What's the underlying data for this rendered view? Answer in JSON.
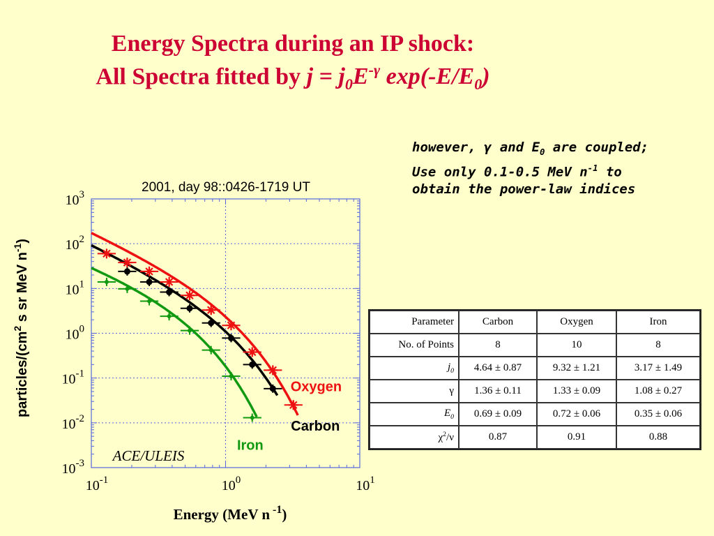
{
  "slide": {
    "title_line1": "Energy Spectra during an IP shock:",
    "title_line2_prefix": "All Spectra fitted by ",
    "title_formula": "j = j0E-γ exp(-E/E0)",
    "note_lines": [
      "however, γ and E0 are coupled;",
      "Use only 0.1-0.5 MeV n-1 to",
      "obtain the power-law indices"
    ]
  },
  "table": {
    "headers": [
      "Parameter",
      "Carbon",
      "Oxygen",
      "Iron"
    ],
    "rows": [
      {
        "label": "No. of Points",
        "values": [
          "8",
          "10",
          "8"
        ]
      },
      {
        "label": "j0",
        "values": [
          "4.64 ± 0.87",
          "9.32 ± 1.21",
          "3.17 ± 1.49"
        ]
      },
      {
        "label": "γ",
        "values": [
          "1.36 ± 0.11",
          "1.33 ± 0.09",
          "1.08 ± 0.27"
        ]
      },
      {
        "label": "E0",
        "values": [
          "0.69 ± 0.09",
          "0.72 ± 0.06",
          "0.35 ± 0.06"
        ]
      },
      {
        "label": "χ2/ν",
        "values": [
          "0.87",
          "0.91",
          "0.88"
        ]
      }
    ]
  },
  "chart_data": {
    "type": "scatter",
    "title": "2001, day 98::0426-1719 UT",
    "xlabel": "Energy (MeV n -1)",
    "ylabel": "particles/(cm2 s sr MeV n-1)",
    "xscale": "log",
    "yscale": "log",
    "xlim": [
      0.1,
      10
    ],
    "ylim": [
      0.001,
      1000
    ],
    "x_ticks": [
      "10^-1",
      "10^0",
      "10^1"
    ],
    "y_ticks": [
      "10^3",
      "10^2",
      "10^1",
      "10^0",
      "10^-1",
      "10^-2",
      "10^-3"
    ],
    "grid": true,
    "annotation": "ACE/ULEIS",
    "series": [
      {
        "name": "Oxygen",
        "color": "#ee1111",
        "marker": "star",
        "x": [
          0.13,
          0.185,
          0.27,
          0.38,
          0.54,
          0.78,
          1.1,
          1.58,
          2.25,
          3.2
        ],
        "y": [
          60,
          38,
          24,
          14,
          7,
          3.3,
          1.5,
          0.38,
          0.15,
          0.025
        ],
        "fit": {
          "j0": 9.32,
          "gamma": 1.33,
          "E0": 0.72
        }
      },
      {
        "name": "Carbon",
        "color": "#000000",
        "marker": "circle",
        "x": [
          0.185,
          0.27,
          0.38,
          0.54,
          0.78,
          1.1,
          1.58,
          2.25
        ],
        "y": [
          24,
          14,
          8.3,
          3.6,
          1.7,
          0.78,
          0.2,
          0.058
        ],
        "fit": {
          "j0": 4.64,
          "gamma": 1.36,
          "E0": 0.69
        }
      },
      {
        "name": "Iron",
        "color": "#119911",
        "marker": "diamond",
        "x": [
          0.13,
          0.185,
          0.27,
          0.38,
          0.54,
          0.78,
          1.1,
          1.58
        ],
        "y": [
          14,
          9.8,
          5.2,
          2.4,
          1.15,
          0.42,
          0.11,
          0.013
        ],
        "fit": {
          "j0": 3.17,
          "gamma": 1.08,
          "E0": 0.35
        }
      }
    ]
  }
}
